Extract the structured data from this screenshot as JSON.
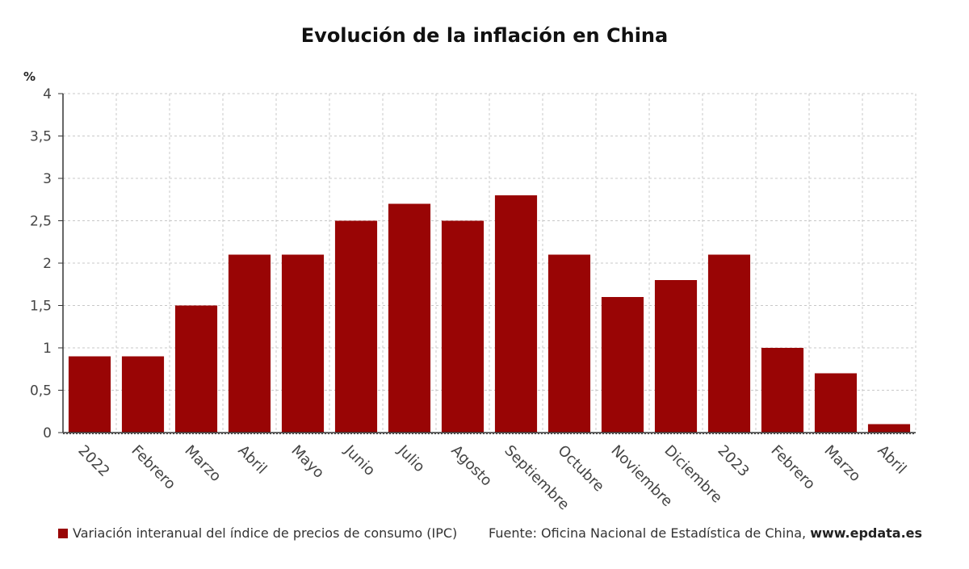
{
  "chart_data": {
    "type": "bar",
    "title": "Evolución de la inflación en China",
    "ylabel": "%",
    "xlabel": "",
    "ylim": [
      0,
      4
    ],
    "yticks": [
      "0",
      "0,5",
      "1",
      "1,5",
      "2",
      "2,5",
      "3",
      "3,5",
      "4"
    ],
    "grid": true,
    "categories": [
      "2022",
      "Febrero",
      "Marzo",
      "Abril",
      "Mayo",
      "Junio",
      "Julio",
      "Agosto",
      "Septiembre",
      "Octubre",
      "Noviembre",
      "Diciembre",
      "2023",
      "Febrero",
      "Marzo",
      "Abril"
    ],
    "series": [
      {
        "name": "Variación interanual del índice de precios de consumo (IPC)",
        "color": "#990505",
        "values": [
          0.9,
          0.9,
          1.5,
          2.1,
          2.1,
          2.5,
          2.7,
          2.5,
          2.8,
          2.1,
          1.6,
          1.8,
          2.1,
          1.0,
          0.7,
          0.1
        ]
      }
    ],
    "legend": "bottom-left"
  },
  "footer": {
    "source_prefix": "Fuente: Oficina Nacional de Estadística de China, ",
    "source_site": "www.epdata.es"
  },
  "colors": {
    "bar": "#990505",
    "grid": "#c8c8c8",
    "axis": "#333333"
  }
}
